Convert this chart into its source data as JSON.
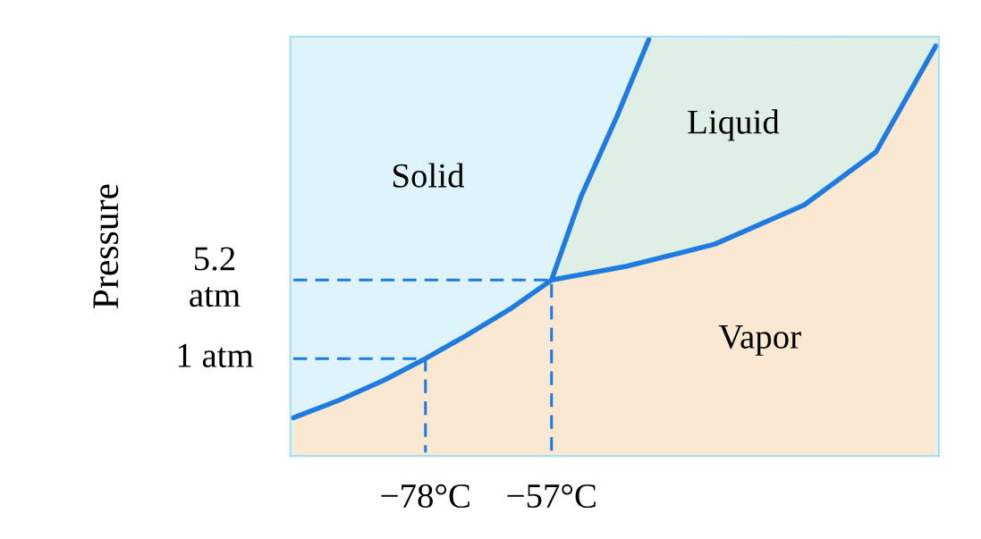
{
  "chart_data": {
    "type": "line",
    "ylabel": "Pressure",
    "log": true,
    "grid": false,
    "marker": "none",
    "xlim": [
      -100.5,
      7.5
    ],
    "ylim": [
      0.13,
      850
    ],
    "xticks": [
      {
        "value": -78,
        "label": "−78°C"
      },
      {
        "value": -57,
        "label": "−57°C"
      }
    ],
    "yticks": [
      {
        "value": 1,
        "label": "1 atm"
      },
      {
        "value": 5.2,
        "label": "5.2\natm"
      }
    ],
    "series": [
      {
        "type": "area",
        "color": "#fbe8d2",
        "x": [
          -100,
          -92.3,
          -84.8,
          -78,
          -71.4,
          -64.0,
          -57,
          -44.6,
          -29.8,
          -14.9,
          -2.95,
          7
        ],
        "values": [
          0.29,
          0.42,
          0.64,
          1,
          1.6,
          2.8,
          5.2,
          6.9,
          11,
          25,
          76,
          700
        ]
      },
      {
        "color": "#1e7be0",
        "line_style": "solid",
        "x": [
          -100,
          -92.3,
          -84.8,
          -78,
          -71.4,
          -64.0,
          -57,
          -44.6,
          -29.8,
          -14.9,
          -2.95,
          7
        ],
        "values": [
          0.29,
          0.42,
          0.64,
          1,
          1.6,
          2.8,
          5.2,
          6.9,
          11,
          25,
          76,
          700
        ]
      },
      {
        "color": "#1e7be0",
        "line_style": "solid",
        "x": [
          -57,
          -52.1,
          -46.1,
          -40.8
        ],
        "values": [
          5.2,
          29.7,
          160,
          800
        ]
      },
      {
        "color": "#1e7be0",
        "line_style": "dashed",
        "x": [
          -100,
          -78,
          -78
        ],
        "values": [
          1,
          1,
          0.14
        ]
      },
      {
        "color": "#1e7be0",
        "line_style": "dashed",
        "x": [
          -100,
          -57,
          -57
        ],
        "values": [
          5.2,
          5.2,
          0.14
        ]
      }
    ],
    "annotations": [
      "Solid",
      "Liquid",
      "Vapor"
    ]
  }
}
